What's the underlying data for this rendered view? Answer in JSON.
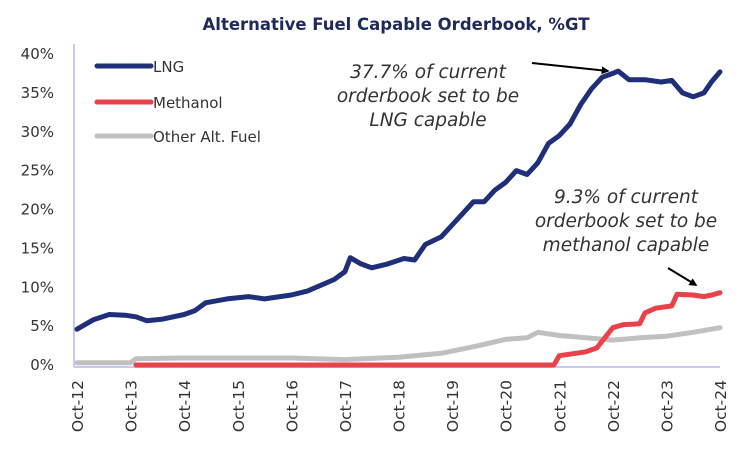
{
  "chart_data": {
    "type": "line",
    "title": "Alternative Fuel Capable Orderbook, %GT",
    "xlabel": "",
    "ylabel": "",
    "ylim": [
      0,
      40
    ],
    "xlim": [
      0,
      12
    ],
    "x_unit": "years since Oct-12",
    "grid": false,
    "legend_position": "top-left",
    "yticks": [
      {
        "value": 0,
        "label": "0%"
      },
      {
        "value": 5,
        "label": "5%"
      },
      {
        "value": 10,
        "label": "10%"
      },
      {
        "value": 15,
        "label": "15%"
      },
      {
        "value": 20,
        "label": "20%"
      },
      {
        "value": 25,
        "label": "25%"
      },
      {
        "value": 30,
        "label": "30%"
      },
      {
        "value": 35,
        "label": "35%"
      },
      {
        "value": 40,
        "label": "40%"
      }
    ],
    "xticks": [
      {
        "value": 0,
        "label": "Oct-12"
      },
      {
        "value": 1,
        "label": "Oct-13"
      },
      {
        "value": 2,
        "label": "Oct-14"
      },
      {
        "value": 3,
        "label": "Oct-15"
      },
      {
        "value": 4,
        "label": "Oct-16"
      },
      {
        "value": 5,
        "label": "Oct-17"
      },
      {
        "value": 6,
        "label": "Oct-18"
      },
      {
        "value": 7,
        "label": "Oct-19"
      },
      {
        "value": 8,
        "label": "Oct-20"
      },
      {
        "value": 9,
        "label": "Oct-21"
      },
      {
        "value": 10,
        "label": "Oct-22"
      },
      {
        "value": 11,
        "label": "Oct-23"
      },
      {
        "value": 12,
        "label": "Oct-24"
      }
    ],
    "series": [
      {
        "name": "Other Alt. Fuel",
        "color": "#c0c0c0",
        "x": [
          0,
          1.0,
          1.1,
          2.0,
          3.0,
          4.0,
          5.0,
          6.0,
          6.8,
          7.5,
          8.0,
          8.4,
          8.6,
          9.0,
          9.5,
          10.0,
          10.5,
          11.0,
          11.5,
          12.0
        ],
        "values": [
          0.3,
          0.3,
          0.8,
          0.9,
          0.9,
          0.9,
          0.7,
          1.0,
          1.5,
          2.5,
          3.3,
          3.5,
          4.2,
          3.8,
          3.5,
          3.2,
          3.5,
          3.7,
          4.2,
          4.8
        ]
      },
      {
        "name": "Methanol",
        "color": "#e8424a",
        "x": [
          1.1,
          3.0,
          5.0,
          7.0,
          8.9,
          9.0,
          9.5,
          9.7,
          9.85,
          10.0,
          10.2,
          10.5,
          10.6,
          10.8,
          11.1,
          11.2,
          11.5,
          11.7,
          11.85,
          12.0
        ],
        "values": [
          0,
          0,
          0,
          0,
          0,
          1.2,
          1.7,
          2.2,
          3.5,
          4.8,
          5.2,
          5.3,
          6.7,
          7.3,
          7.6,
          9.1,
          9.0,
          8.8,
          9.0,
          9.3
        ]
      },
      {
        "name": "LNG",
        "color": "#1f2f7a",
        "x": [
          0,
          0.3,
          0.6,
          0.9,
          1.1,
          1.3,
          1.6,
          2.0,
          2.2,
          2.4,
          2.8,
          3.2,
          3.5,
          4.0,
          4.3,
          4.8,
          5.0,
          5.1,
          5.3,
          5.5,
          5.8,
          6.1,
          6.3,
          6.5,
          6.8,
          7.0,
          7.2,
          7.4,
          7.6,
          7.8,
          8.0,
          8.2,
          8.4,
          8.6,
          8.8,
          9.0,
          9.2,
          9.4,
          9.6,
          9.8,
          10.0,
          10.1,
          10.3,
          10.6,
          10.9,
          11.1,
          11.3,
          11.5,
          11.7,
          11.85,
          12.0
        ],
        "values": [
          4.6,
          5.8,
          6.5,
          6.4,
          6.2,
          5.7,
          5.9,
          6.5,
          7.0,
          8.0,
          8.5,
          8.8,
          8.5,
          9.0,
          9.5,
          11.0,
          12.0,
          13.8,
          13.0,
          12.5,
          13.0,
          13.7,
          13.5,
          15.5,
          16.5,
          18.0,
          19.5,
          21.0,
          21.0,
          22.5,
          23.5,
          25.0,
          24.5,
          26.0,
          28.5,
          29.5,
          31.0,
          33.5,
          35.5,
          37.0,
          37.5,
          37.8,
          36.7,
          36.7,
          36.4,
          36.6,
          35.0,
          34.5,
          35.0,
          36.5,
          37.7
        ]
      }
    ],
    "legend": [
      {
        "name": "LNG",
        "color": "#1f2f7a"
      },
      {
        "name": "Methanol",
        "color": "#e8424a"
      },
      {
        "name": "Other Alt. Fuel",
        "color": "#c0c0c0"
      }
    ],
    "annotations": [
      {
        "id": "lng",
        "lines": [
          "37.7% of current",
          "orderbook set to be",
          "LNG capable"
        ],
        "points_to": {
          "x": 10.05,
          "y": 37.7
        }
      },
      {
        "id": "methanol",
        "lines": [
          "9.3% of current",
          "orderbook set to be",
          "methanol capable"
        ],
        "points_to": {
          "x": 11.25,
          "y": 9.3
        }
      }
    ],
    "axis_color": "#c8c8ee"
  }
}
